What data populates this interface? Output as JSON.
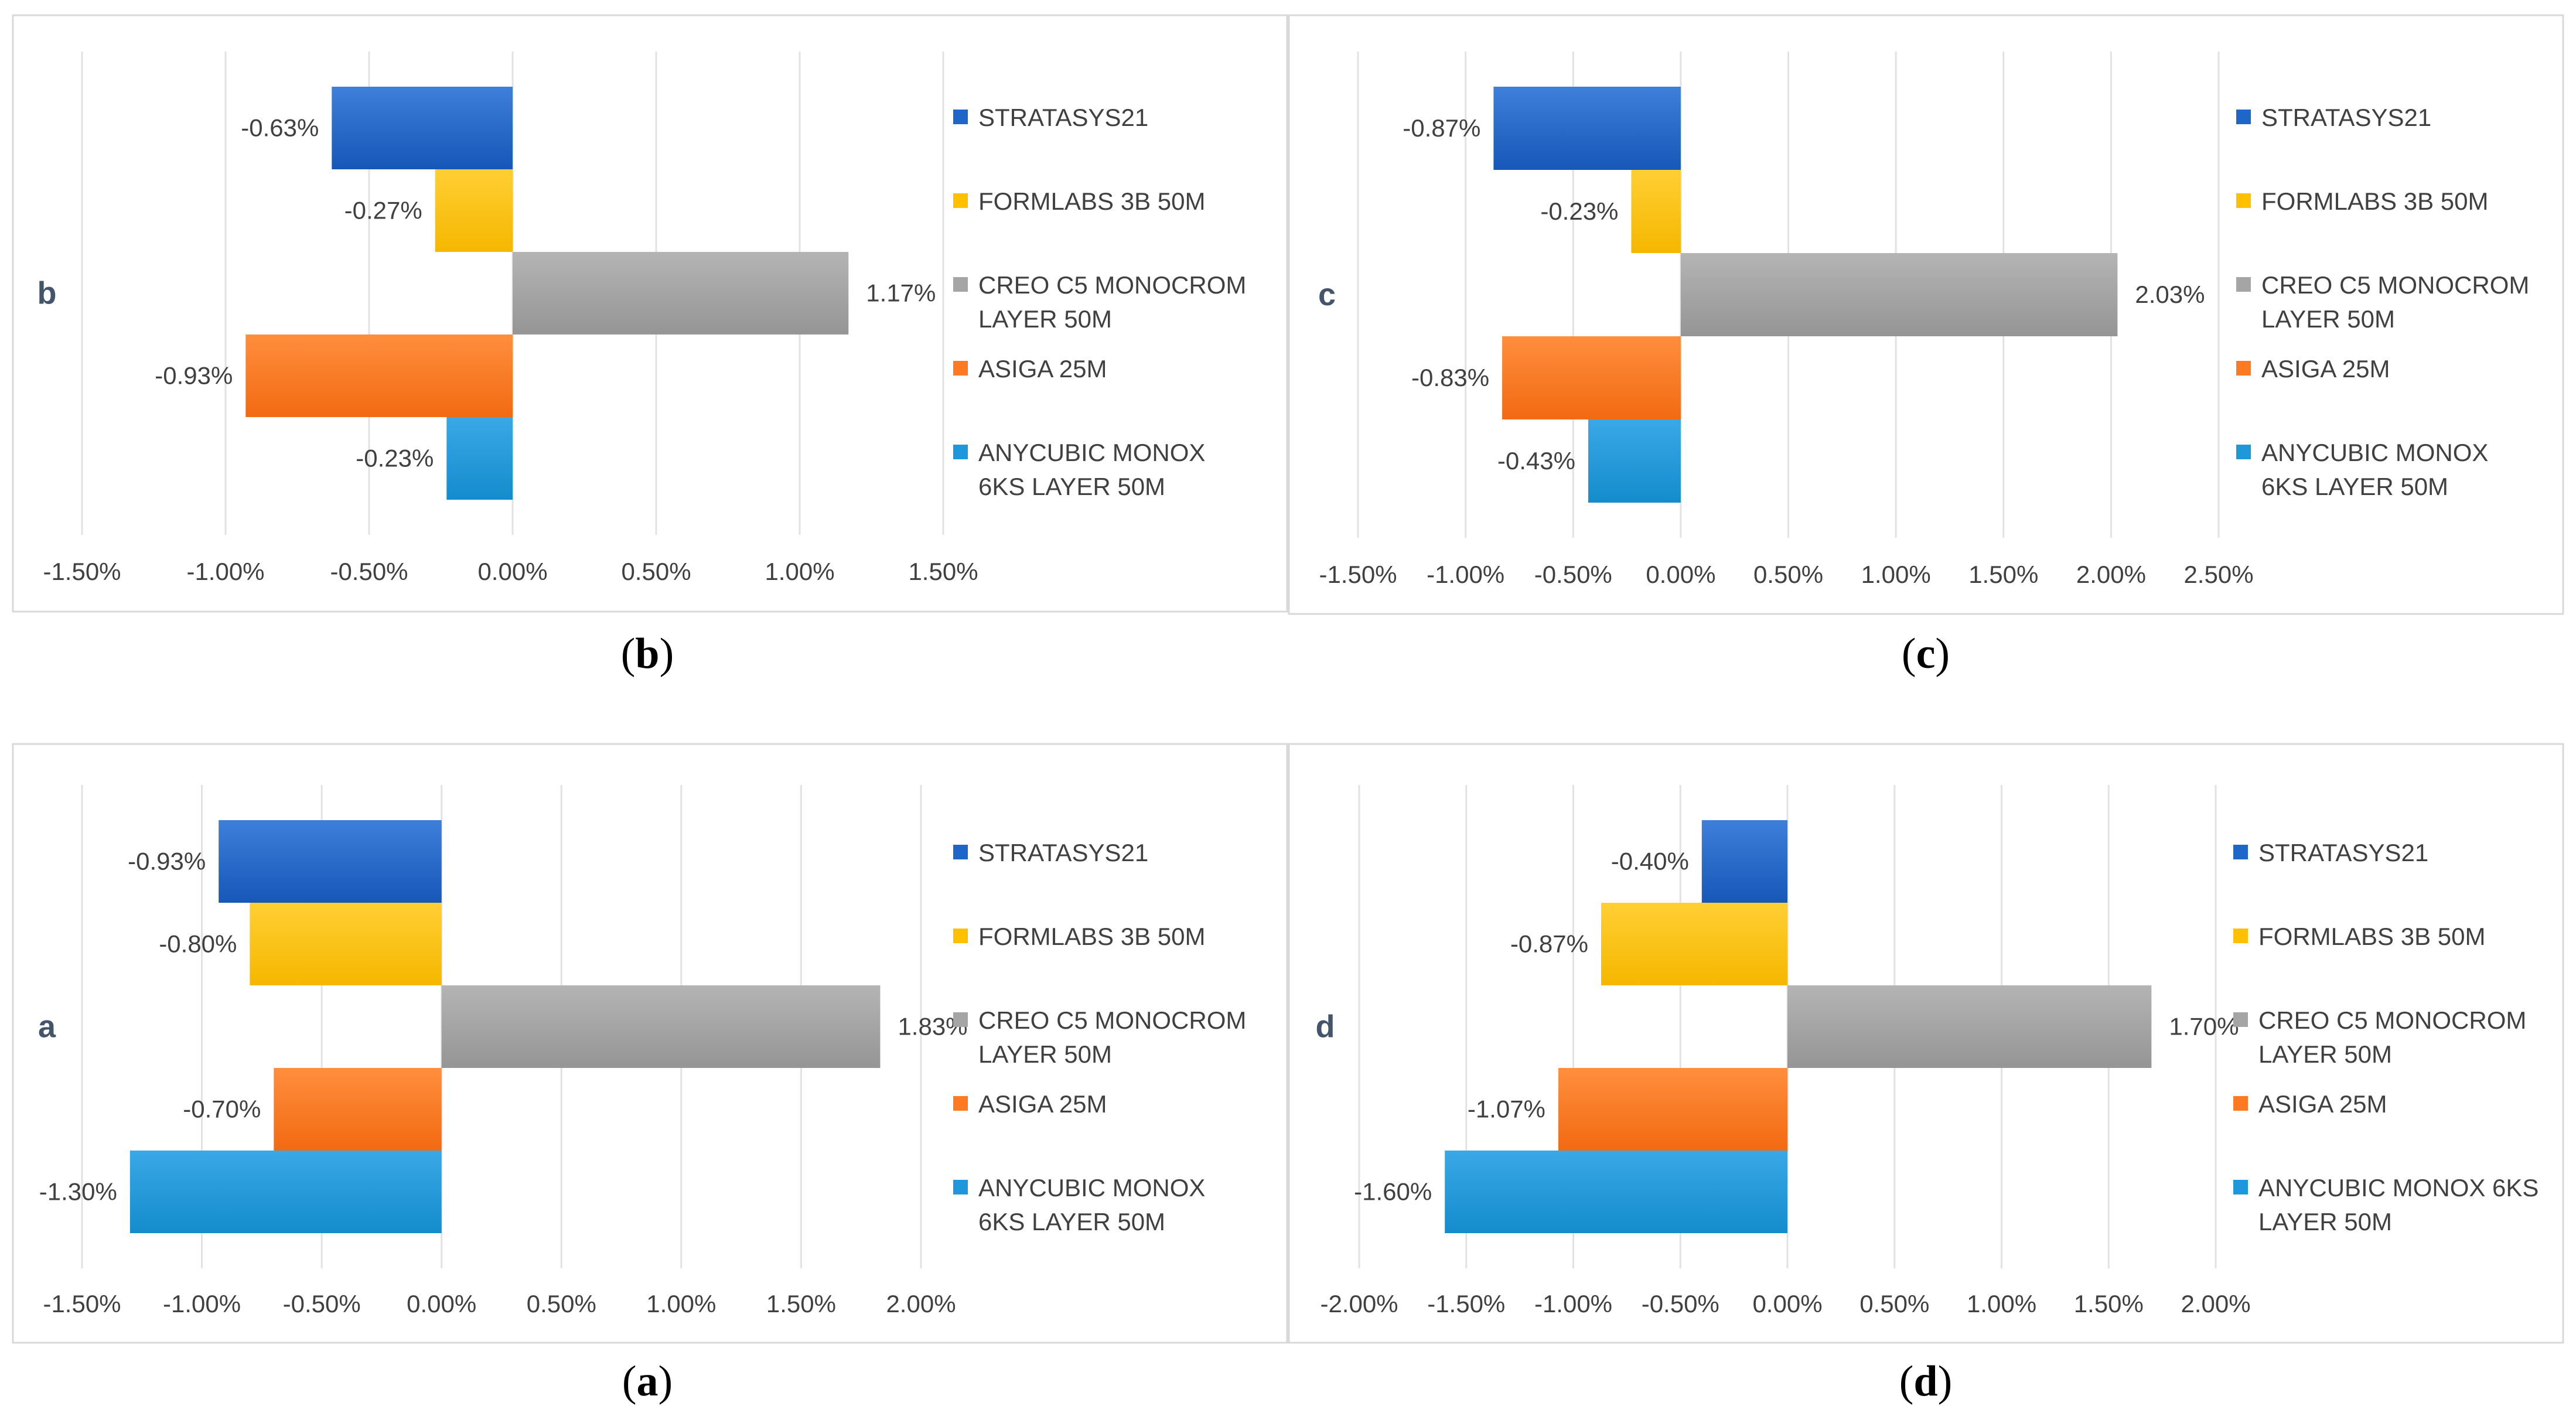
{
  "figure": {
    "colors": {
      "STRATASYS21": "#1f66c9",
      "FORMLABS 3B 50M": "#ffc000",
      "CREO C5 MONOCROM LAYER 50M": "#a5a5a5",
      "ASIGA 25M": "#fd7a22",
      "ANYCUBIC MONOX 6KS LAYER 50M": "#1f98db"
    }
  },
  "chart_data": [
    {
      "id": "b",
      "type": "bar",
      "orientation": "horizontal",
      "panel_label": "b",
      "caption_open": "(",
      "caption_letter": "b",
      "caption_close": ")",
      "categories": [
        "STRATASYS21",
        "FORMLABS 3B 50M",
        "CREO C5 MONOCROM LAYER 50M",
        "ASIGA 25M",
        "ANYCUBIC MONOX 6KS LAYER 50M"
      ],
      "values": [
        -0.63,
        -0.27,
        1.17,
        -0.93,
        -0.23
      ],
      "value_labels": [
        "-0.63%",
        "-0.27%",
        "1.17%",
        "-0.93%",
        "-0.23%"
      ],
      "legend": [
        [
          "STRATASYS21"
        ],
        [
          "FORMLABS 3B 50M"
        ],
        [
          "CREO C5 MONOCROM",
          "LAYER 50M"
        ],
        [
          "ASIGA 25M"
        ],
        [
          "ANYCUBIC MONOX",
          "6KS LAYER 50M"
        ]
      ],
      "xlim": [
        -1.5,
        1.5
      ],
      "xticks": [
        -1.5,
        -1.0,
        -0.5,
        0.0,
        0.5,
        1.0,
        1.5
      ],
      "xtick_labels": [
        "-1.50%",
        "-1.00%",
        "-0.50%",
        "0.00%",
        "0.50%",
        "1.00%",
        "1.50%"
      ],
      "legend_position": "right",
      "grid": true
    },
    {
      "id": "c",
      "type": "bar",
      "orientation": "horizontal",
      "panel_label": "c",
      "caption_open": "(",
      "caption_letter": "c",
      "caption_close": ")",
      "categories": [
        "STRATASYS21",
        "FORMLABS 3B 50M",
        "CREO C5 MONOCROM LAYER 50M",
        "ASIGA 25M",
        "ANYCUBIC MONOX 6KS LAYER 50M"
      ],
      "values": [
        -0.87,
        -0.23,
        2.03,
        -0.83,
        -0.43
      ],
      "value_labels": [
        "-0.87%",
        "-0.23%",
        "2.03%",
        "-0.83%",
        "-0.43%"
      ],
      "legend": [
        [
          "STRATASYS21"
        ],
        [
          "FORMLABS 3B 50M"
        ],
        [
          "CREO C5 MONOCROM",
          "LAYER 50M"
        ],
        [
          "ASIGA 25M"
        ],
        [
          "ANYCUBIC MONOX",
          "6KS LAYER 50M"
        ]
      ],
      "xlim": [
        -1.5,
        2.5
      ],
      "xticks": [
        -1.5,
        -1.0,
        -0.5,
        0.0,
        0.5,
        1.0,
        1.5,
        2.0,
        2.5
      ],
      "xtick_labels": [
        "-1.50%",
        "-1.00%",
        "-0.50%",
        "0.00%",
        "0.50%",
        "1.00%",
        "1.50%",
        "2.00%",
        "2.50%"
      ],
      "legend_position": "right",
      "grid": true
    },
    {
      "id": "a",
      "type": "bar",
      "orientation": "horizontal",
      "panel_label": "a",
      "caption_open": "(",
      "caption_letter": "a",
      "caption_close": ")",
      "categories": [
        "STRATASYS21",
        "FORMLABS 3B 50M",
        "CREO C5 MONOCROM LAYER 50M",
        "ASIGA 25M",
        "ANYCUBIC MONOX 6KS LAYER 50M"
      ],
      "values": [
        -0.93,
        -0.8,
        1.83,
        -0.7,
        -1.3
      ],
      "value_labels": [
        "-0.93%",
        "-0.80%",
        "1.83%",
        "-0.70%",
        "-1.30%"
      ],
      "legend": [
        [
          "STRATASYS21"
        ],
        [
          "FORMLABS 3B 50M"
        ],
        [
          "CREO C5 MONOCROM",
          "LAYER 50M"
        ],
        [
          "ASIGA 25M"
        ],
        [
          "ANYCUBIC MONOX",
          "6KS LAYER 50M"
        ]
      ],
      "xlim": [
        -1.5,
        2.0
      ],
      "xticks": [
        -1.5,
        -1.0,
        -0.5,
        0.0,
        0.5,
        1.0,
        1.5,
        2.0
      ],
      "xtick_labels": [
        "-1.50%",
        "-1.00%",
        "-0.50%",
        "0.00%",
        "0.50%",
        "1.00%",
        "1.50%",
        "2.00%"
      ],
      "legend_position": "right",
      "grid": true
    },
    {
      "id": "d",
      "type": "bar",
      "orientation": "horizontal",
      "panel_label": "d",
      "caption_open": "(",
      "caption_letter": "d",
      "caption_close": ")",
      "categories": [
        "STRATASYS21",
        "FORMLABS 3B 50M",
        "CREO C5 MONOCROM LAYER 50M",
        "ASIGA 25M",
        "ANYCUBIC MONOX 6KS LAYER 50M"
      ],
      "values": [
        -0.4,
        -0.87,
        1.7,
        -1.07,
        -1.6
      ],
      "value_labels": [
        "-0.40%",
        "-0.87%",
        "1.70%",
        "-1.07%",
        "-1.60%"
      ],
      "legend": [
        [
          "STRATASYS21"
        ],
        [
          "FORMLABS 3B 50M"
        ],
        [
          "CREO C5 MONOCROM",
          "LAYER 50M"
        ],
        [
          "ASIGA 25M"
        ],
        [
          "ANYCUBIC MONOX 6KS",
          "LAYER 50M"
        ]
      ],
      "xlim": [
        -2.0,
        2.0
      ],
      "xticks": [
        -2.0,
        -1.5,
        -1.0,
        -0.5,
        0.0,
        0.5,
        1.0,
        1.5,
        2.0
      ],
      "xtick_labels": [
        "-2.00%",
        "-1.50%",
        "-1.00%",
        "-0.50%",
        "0.00%",
        "0.50%",
        "1.00%",
        "1.50%",
        "2.00%"
      ],
      "legend_position": "right",
      "grid": true
    }
  ]
}
